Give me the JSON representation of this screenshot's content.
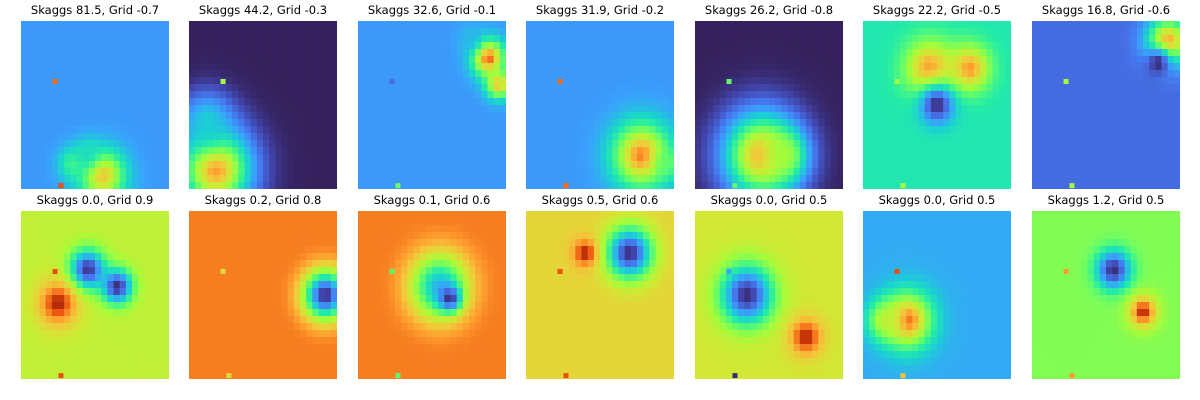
{
  "figure": {
    "background": "#ffffff",
    "colormap": "turbo"
  },
  "chart_data": [
    {
      "type": "heatmap",
      "title": "Skaggs 81.5, Grid -0.7",
      "skaggs": 81.5,
      "grid": -0.7,
      "background_level": 0.28,
      "blobs": [
        [
          0.55,
          0.92,
          0.11,
          0.85
        ],
        [
          0.35,
          0.85,
          0.07,
          0.55
        ],
        [
          0.45,
          0.78,
          0.06,
          0.45
        ]
      ],
      "markers": [
        {
          "x": 0.23,
          "y": 0.36,
          "level": 0.93
        },
        {
          "x": 0.27,
          "y": 0.98,
          "level": 0.95
        }
      ]
    },
    {
      "type": "heatmap",
      "title": "Skaggs 44.2, Grid -0.3",
      "skaggs": 44.2,
      "grid": -0.3,
      "background_level": 0.03,
      "blobs": [
        [
          0.18,
          0.88,
          0.17,
          0.92
        ],
        [
          0.12,
          0.6,
          0.12,
          0.4
        ]
      ],
      "markers": [
        {
          "x": 0.23,
          "y": 0.36,
          "level": 0.7
        }
      ]
    },
    {
      "type": "heatmap",
      "title": "Skaggs 32.6, Grid -0.1",
      "skaggs": 32.6,
      "grid": -0.1,
      "background_level": 0.28,
      "blobs": [
        [
          0.88,
          0.22,
          0.08,
          0.95
        ],
        [
          0.95,
          0.38,
          0.06,
          0.85
        ],
        [
          0.75,
          0.1,
          0.06,
          0.35
        ]
      ],
      "markers": [
        {
          "x": 0.23,
          "y": 0.36,
          "level": 0.18
        },
        {
          "x": 0.27,
          "y": 0.98,
          "level": 0.62
        }
      ]
    },
    {
      "type": "heatmap",
      "title": "Skaggs 31.9, Grid -0.2",
      "skaggs": 31.9,
      "grid": -0.2,
      "background_level": 0.28,
      "blobs": [
        [
          0.78,
          0.8,
          0.14,
          0.92
        ],
        [
          0.95,
          0.85,
          0.06,
          0.6
        ]
      ],
      "markers": [
        {
          "x": 0.23,
          "y": 0.36,
          "level": 0.93
        },
        {
          "x": 0.27,
          "y": 0.98,
          "level": 0.93
        }
      ]
    },
    {
      "type": "heatmap",
      "title": "Skaggs 26.2, Grid -0.8",
      "skaggs": 26.2,
      "grid": -0.8,
      "background_level": 0.03,
      "blobs": [
        [
          0.45,
          0.8,
          0.18,
          0.9
        ],
        [
          0.6,
          0.8,
          0.1,
          0.7
        ]
      ],
      "markers": [
        {
          "x": 0.23,
          "y": 0.36,
          "level": 0.6
        },
        {
          "x": 0.27,
          "y": 0.98,
          "level": 0.6
        }
      ]
    },
    {
      "type": "heatmap",
      "title": "Skaggs 22.2, Grid -0.5",
      "skaggs": 22.2,
      "grid": -0.5,
      "background_level": 0.48,
      "blobs": [
        [
          0.45,
          0.28,
          0.12,
          0.9
        ],
        [
          0.72,
          0.28,
          0.1,
          0.9
        ],
        [
          0.5,
          0.5,
          0.08,
          0.05
        ]
      ],
      "markers": [
        {
          "x": 0.23,
          "y": 0.36,
          "level": 0.7
        },
        {
          "x": 0.27,
          "y": 0.98,
          "level": 0.7
        }
      ]
    },
    {
      "type": "heatmap",
      "title": "Skaggs 16.8, Grid -0.6",
      "skaggs": 16.8,
      "grid": -0.6,
      "background_level": 0.18,
      "blobs": [
        [
          0.92,
          0.12,
          0.1,
          0.9
        ],
        [
          0.85,
          0.25,
          0.06,
          0.05
        ]
      ],
      "markers": [
        {
          "x": 0.23,
          "y": 0.36,
          "level": 0.7
        },
        {
          "x": 0.27,
          "y": 0.98,
          "level": 0.7
        }
      ]
    },
    {
      "type": "heatmap",
      "title": "Skaggs 0.0, Grid 0.9",
      "skaggs": 0.0,
      "grid": 0.9,
      "background_level": 0.75,
      "blobs": [
        [
          0.45,
          0.35,
          0.08,
          0.05
        ],
        [
          0.65,
          0.45,
          0.07,
          0.05
        ],
        [
          0.25,
          0.55,
          0.1,
          0.98
        ]
      ],
      "markers": [
        {
          "x": 0.23,
          "y": 0.36,
          "level": 0.95
        },
        {
          "x": 0.27,
          "y": 0.98,
          "level": 0.95
        }
      ]
    },
    {
      "type": "heatmap",
      "title": "Skaggs 0.2, Grid 0.8",
      "skaggs": 0.2,
      "grid": 0.8,
      "background_level": 0.92,
      "blobs": [
        [
          0.92,
          0.5,
          0.09,
          0.05
        ]
      ],
      "markers": [
        {
          "x": 0.23,
          "y": 0.36,
          "level": 0.8
        },
        {
          "x": 0.27,
          "y": 0.98,
          "level": 0.8
        }
      ]
    },
    {
      "type": "heatmap",
      "title": "Skaggs 0.1, Grid 0.6",
      "skaggs": 0.1,
      "grid": 0.6,
      "background_level": 0.92,
      "blobs": [
        [
          0.55,
          0.45,
          0.12,
          0.35
        ],
        [
          0.62,
          0.52,
          0.05,
          0.05
        ]
      ],
      "markers": [
        {
          "x": 0.23,
          "y": 0.36,
          "level": 0.6
        },
        {
          "x": 0.27,
          "y": 0.98,
          "level": 0.6
        }
      ]
    },
    {
      "type": "heatmap",
      "title": "Skaggs 0.5, Grid 0.6",
      "skaggs": 0.5,
      "grid": 0.6,
      "background_level": 0.82,
      "blobs": [
        [
          0.7,
          0.25,
          0.1,
          0.05
        ],
        [
          0.4,
          0.25,
          0.06,
          0.98
        ]
      ],
      "markers": [
        {
          "x": 0.23,
          "y": 0.36,
          "level": 0.95
        },
        {
          "x": 0.27,
          "y": 0.98,
          "level": 0.95
        }
      ]
    },
    {
      "type": "heatmap",
      "title": "Skaggs 0.0, Grid 0.5",
      "skaggs": 0.0,
      "grid": 0.5,
      "background_level": 0.78,
      "blobs": [
        [
          0.35,
          0.5,
          0.12,
          0.05
        ],
        [
          0.75,
          0.75,
          0.08,
          0.98
        ]
      ],
      "markers": [
        {
          "x": 0.23,
          "y": 0.36,
          "level": 0.3
        },
        {
          "x": 0.27,
          "y": 0.98,
          "level": 0.05
        }
      ]
    },
    {
      "type": "heatmap",
      "title": "Skaggs 0.0, Grid 0.5",
      "skaggs": 0.0,
      "grid": 0.5,
      "background_level": 0.32,
      "blobs": [
        [
          0.3,
          0.65,
          0.12,
          0.95
        ],
        [
          0.15,
          0.65,
          0.08,
          0.75
        ]
      ],
      "markers": [
        {
          "x": 0.23,
          "y": 0.36,
          "level": 0.95
        },
        {
          "x": 0.27,
          "y": 0.98,
          "level": 0.85
        }
      ]
    },
    {
      "type": "heatmap",
      "title": "Skaggs 1.2, Grid 0.5",
      "skaggs": 1.2,
      "grid": 0.5,
      "background_level": 0.65,
      "blobs": [
        [
          0.55,
          0.35,
          0.08,
          0.05
        ],
        [
          0.75,
          0.6,
          0.07,
          0.98
        ]
      ],
      "markers": [
        {
          "x": 0.23,
          "y": 0.36,
          "level": 0.9
        },
        {
          "x": 0.27,
          "y": 0.98,
          "level": 0.9
        }
      ]
    }
  ]
}
